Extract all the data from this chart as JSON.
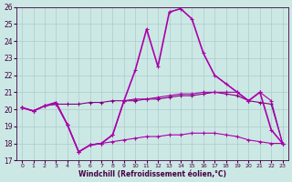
{
  "xlabel": "Windchill (Refroidissement éolien,°C)",
  "xlim": [
    -0.5,
    23.5
  ],
  "ylim": [
    17,
    26
  ],
  "yticks": [
    17,
    18,
    19,
    20,
    21,
    22,
    23,
    24,
    25,
    26
  ],
  "xticks": [
    0,
    1,
    2,
    3,
    4,
    5,
    6,
    7,
    8,
    9,
    10,
    11,
    12,
    13,
    14,
    15,
    16,
    17,
    18,
    19,
    20,
    21,
    22,
    23
  ],
  "bg_color": "#cce8e4",
  "grid_color": "#aacccc",
  "line_color_dark": "#800080",
  "line_color_med": "#aa00aa",
  "series": {
    "line_flat_x": [
      0,
      1,
      2,
      3,
      4,
      5,
      6,
      7,
      8,
      9,
      10,
      11,
      12,
      13,
      14,
      15,
      16,
      17,
      18,
      19,
      20,
      21,
      22,
      23
    ],
    "line_flat_y": [
      20.1,
      19.9,
      20.2,
      20.3,
      20.3,
      20.3,
      20.4,
      20.4,
      20.5,
      20.5,
      20.5,
      20.6,
      20.6,
      20.7,
      20.8,
      20.8,
      20.9,
      21.0,
      20.9,
      20.8,
      20.5,
      20.4,
      20.3,
      18.0
    ],
    "line_low_x": [
      0,
      1,
      2,
      3,
      4,
      5,
      6,
      7,
      8,
      9,
      10,
      11,
      12,
      13,
      14,
      15,
      16,
      17,
      18,
      19,
      20,
      21,
      22,
      23
    ],
    "line_low_y": [
      20.1,
      19.9,
      20.2,
      20.3,
      19.1,
      17.5,
      17.9,
      18.0,
      18.1,
      18.2,
      18.3,
      18.4,
      18.4,
      18.5,
      18.5,
      18.6,
      18.6,
      18.6,
      18.5,
      18.4,
      18.2,
      18.1,
      18.0,
      18.0
    ],
    "line_mid_x": [
      0,
      1,
      2,
      3,
      4,
      5,
      6,
      7,
      8,
      9,
      10,
      11,
      12,
      13,
      14,
      15,
      16,
      17,
      18,
      19,
      20,
      21,
      22,
      23
    ],
    "line_mid_y": [
      20.1,
      19.9,
      20.2,
      20.4,
      19.1,
      17.5,
      17.9,
      18.0,
      18.5,
      20.5,
      20.6,
      20.6,
      20.7,
      20.8,
      20.9,
      20.9,
      21.0,
      21.0,
      21.0,
      21.0,
      20.5,
      21.0,
      20.5,
      18.0
    ],
    "line_peak_x": [
      0,
      1,
      2,
      3,
      4,
      5,
      6,
      7,
      8,
      9,
      10,
      11,
      12,
      13,
      14,
      15,
      16,
      17,
      18,
      19,
      20,
      21,
      22,
      23
    ],
    "line_peak_y": [
      20.1,
      19.9,
      20.2,
      20.4,
      19.1,
      17.5,
      17.9,
      18.0,
      18.5,
      20.5,
      22.3,
      24.7,
      22.5,
      25.7,
      25.9,
      25.3,
      23.3,
      22.0,
      21.5,
      21.0,
      20.5,
      21.0,
      18.8,
      18.0
    ]
  }
}
